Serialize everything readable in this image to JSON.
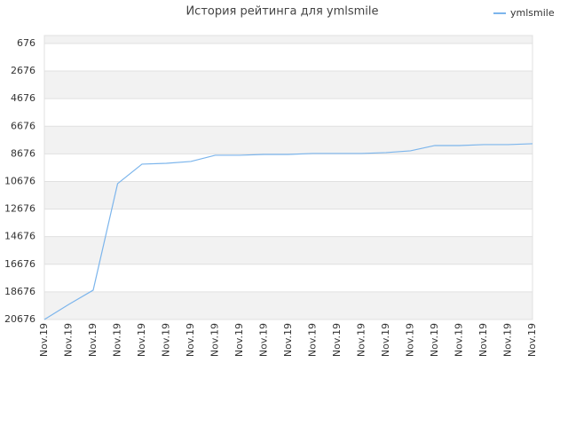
{
  "chart_data": {
    "type": "line",
    "title": "История рейтинга для ymlsmile",
    "categories": [
      "Nov.19",
      "Nov.19",
      "Nov.19",
      "Nov.19",
      "Nov.19",
      "Nov.19",
      "Nov.19",
      "Nov.19",
      "Nov.19",
      "Nov.19",
      "Nov.19",
      "Nov.19",
      "Nov.19",
      "Nov.19",
      "Nov.19",
      "Nov.19",
      "Nov.19",
      "Nov.19",
      "Nov.19",
      "Nov.19",
      "Nov.19"
    ],
    "series": [
      {
        "name": "ymlsmile",
        "color": "#7cb5ec",
        "values": [
          20676,
          19580,
          18550,
          10835,
          9421,
          9357,
          9228,
          8778,
          8778,
          8714,
          8714,
          8649,
          8649,
          8649,
          8585,
          8456,
          8071,
          8071,
          8006,
          8006,
          7942
        ]
      }
    ],
    "ylim": [
      20676,
      100
    ],
    "yticks": [
      676,
      2676,
      4676,
      6676,
      8676,
      10676,
      12676,
      14676,
      16676,
      18676,
      20676
    ],
    "grid": true,
    "legend": "top-right"
  }
}
